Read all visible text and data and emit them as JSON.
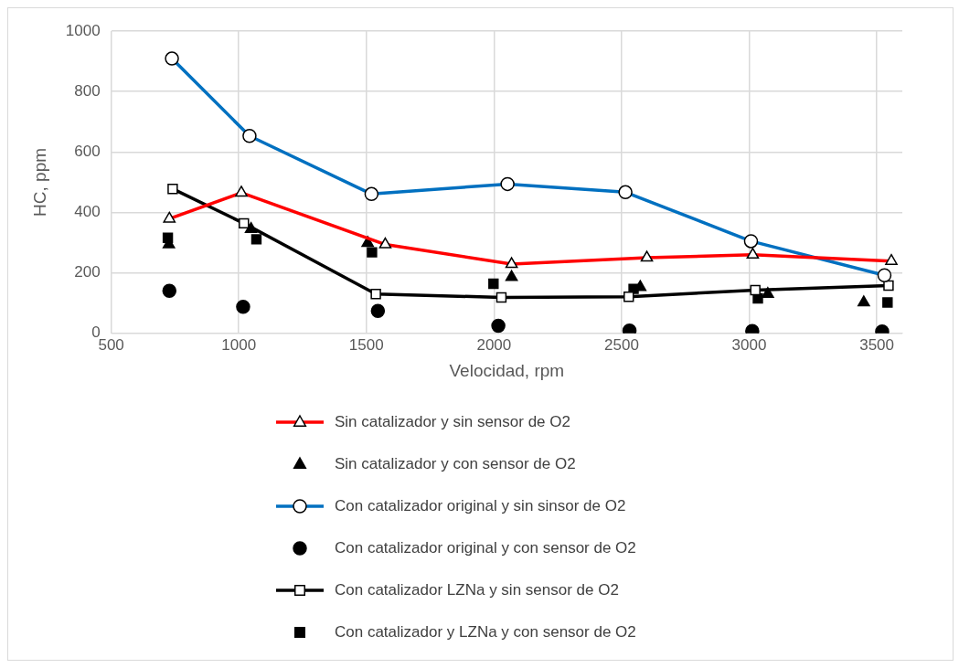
{
  "chart_data": {
    "type": "line",
    "xlabel": "Velocidad, rpm",
    "ylabel": "HC, ppm",
    "xlim": [
      500,
      3600
    ],
    "xticks": [
      500,
      1000,
      1500,
      2000,
      2500,
      3000,
      3500
    ],
    "ylim": [
      0,
      1000
    ],
    "yticks": [
      0,
      200,
      400,
      600,
      800,
      1000
    ],
    "grid": true,
    "legend": "bottom",
    "series": [
      {
        "name": "Sin catalizador y sin sensor de O2",
        "marker": "triangle",
        "color": "#ff0000",
        "x": [
          728,
          1010,
          1574,
          2069,
          2599,
          3014,
          3557
        ],
        "values": [
          379,
          465,
          294,
          229,
          250,
          260,
          239
        ]
      },
      {
        "name": "Sin catalizador y con sensor de O2",
        "type": "scatter",
        "marker": "triangle",
        "color": "#000000",
        "x": [
          726,
          1048,
          1505,
          2069,
          2573,
          3073,
          3449
        ],
        "values": [
          294,
          345,
          299,
          186,
          153,
          130,
          102
        ]
      },
      {
        "name": "Con catalizador original y sin sinsor de O2",
        "marker": "circle",
        "color": "#0070c0",
        "x": [
          738,
          1042,
          1520,
          2053,
          2515,
          3007,
          3530
        ],
        "values": [
          909,
          653,
          461,
          494,
          467,
          305,
          192
        ]
      },
      {
        "name": "Con catalizador original y con sensor de O2",
        "type": "scatter",
        "marker": "circle",
        "color": "#000000",
        "x": [
          728,
          1017,
          1545,
          2017,
          2531,
          3012,
          3521
        ],
        "values": [
          141,
          88,
          74,
          25,
          9,
          8,
          6
        ]
      },
      {
        "name": "Con catalizador LZNa y sin sensor de O2",
        "marker": "square",
        "color": "#000000",
        "x": [
          741,
          1020,
          1537,
          2029,
          2528,
          3024,
          3546
        ],
        "values": [
          478,
          364,
          130,
          119,
          121,
          143,
          158
        ]
      },
      {
        "name": "Con catalizador y LZNa y con sensor de O2",
        "type": "scatter",
        "marker": "square",
        "color": "#000000",
        "x": [
          722,
          1069,
          1522,
          1998,
          2547,
          3034,
          3542
        ],
        "values": [
          316,
          311,
          268,
          164,
          147,
          116,
          102
        ]
      }
    ]
  }
}
